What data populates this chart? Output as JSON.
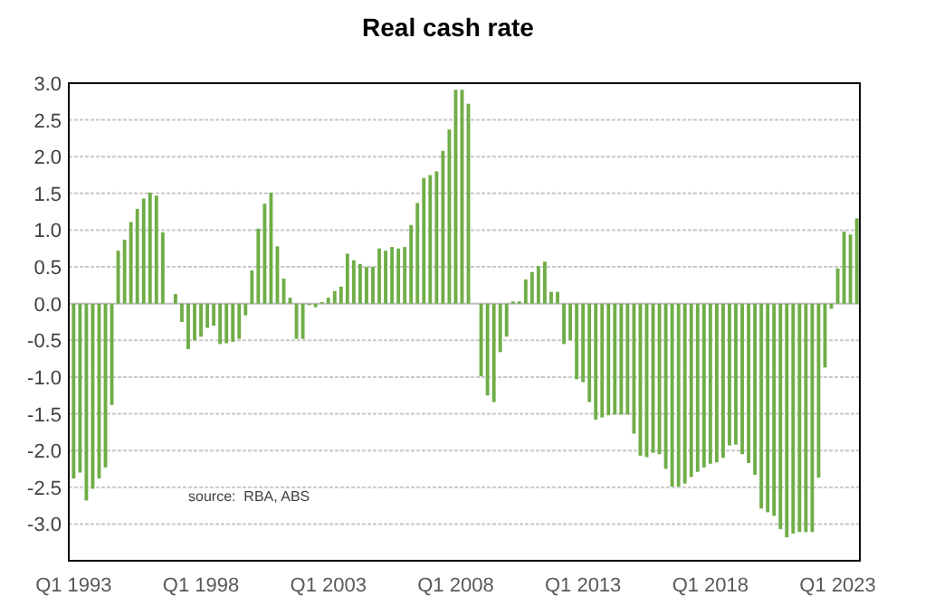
{
  "chart_data": {
    "type": "bar",
    "title": "Real cash rate",
    "categories": [
      "Q1 1993",
      null,
      null,
      null,
      null,
      null,
      null,
      null,
      null,
      null,
      null,
      null,
      null,
      null,
      null,
      null,
      null,
      null,
      null,
      null,
      "Q1 1998",
      null,
      null,
      null,
      null,
      null,
      null,
      null,
      null,
      null,
      null,
      null,
      null,
      null,
      null,
      null,
      null,
      null,
      null,
      null,
      "Q1 2003",
      null,
      null,
      null,
      null,
      null,
      null,
      null,
      null,
      null,
      null,
      null,
      null,
      null,
      null,
      null,
      null,
      null,
      null,
      null,
      "Q1 2008",
      null,
      null,
      null,
      null,
      null,
      null,
      null,
      null,
      null,
      null,
      null,
      null,
      null,
      null,
      null,
      null,
      null,
      null,
      null,
      "Q1 2013",
      null,
      null,
      null,
      null,
      null,
      null,
      null,
      null,
      null,
      null,
      null,
      null,
      null,
      null,
      null,
      null,
      null,
      null,
      null,
      "Q1 2018",
      null,
      null,
      null,
      null,
      null,
      null,
      null,
      null,
      null,
      null,
      null,
      null,
      null,
      null,
      null,
      null,
      null,
      null,
      null,
      "Q1 2023",
      null,
      null,
      null
    ],
    "values": [
      -2.38,
      -2.3,
      -2.68,
      -2.52,
      -2.38,
      -2.23,
      -1.38,
      0.72,
      0.87,
      1.11,
      1.29,
      1.43,
      1.51,
      1.47,
      0.97,
      0,
      0.13,
      -0.25,
      -0.62,
      -0.5,
      -0.45,
      -0.33,
      -0.3,
      -0.55,
      -0.54,
      -0.52,
      -0.48,
      -0.16,
      0.45,
      1.02,
      1.36,
      1.51,
      0.78,
      0.34,
      0.08,
      -0.48,
      -0.48,
      -0.02,
      -0.05,
      0.02,
      0.08,
      0.17,
      0.23,
      0.68,
      0.59,
      0.54,
      0.5,
      0.5,
      0.75,
      0.72,
      0.77,
      0.75,
      0.77,
      1.07,
      1.37,
      1.71,
      1.75,
      1.8,
      2.08,
      2.37,
      2.91,
      2.91,
      2.72,
      0,
      -0.99,
      -1.25,
      -1.34,
      -0.66,
      -0.45,
      0.03,
      0.03,
      0.33,
      0.43,
      0.51,
      0.57,
      0.16,
      0.16,
      -0.55,
      -0.5,
      -1.03,
      -1.07,
      -1.34,
      -1.58,
      -1.55,
      -1.52,
      -1.51,
      -1.51,
      -1.51,
      -1.77,
      -2.07,
      -2.09,
      -2.03,
      -2.05,
      -2.25,
      -2.49,
      -2.49,
      -2.45,
      -2.36,
      -2.29,
      -2.23,
      -2.18,
      -2.16,
      -2.1,
      -1.93,
      -1.92,
      -2.05,
      -2.17,
      -2.33,
      -2.79,
      -2.84,
      -2.89,
      -3.07,
      -3.18,
      -3.13,
      -3.11,
      -3.11,
      -3.11,
      -2.37,
      -0.87,
      -0.07,
      0.48,
      0.98,
      0.94,
      1.16
    ],
    "color": "#70ad47",
    "ylim": [
      -3.5,
      3.0
    ],
    "yticks": [
      {
        "value": -3,
        "label": "-3.0"
      },
      {
        "value": -2.5,
        "label": "-2.5"
      },
      {
        "value": -2,
        "label": "-2.0"
      },
      {
        "value": -1.5,
        "label": "-1.5"
      },
      {
        "value": -1,
        "label": "-1.0"
      },
      {
        "value": -0.5,
        "label": "-0.5"
      },
      {
        "value": 0,
        "label": "0.0"
      },
      {
        "value": 0.5,
        "label": "0.5"
      },
      {
        "value": 1,
        "label": "1.0"
      },
      {
        "value": 1.5,
        "label": "1.5"
      },
      {
        "value": 2,
        "label": "2.0"
      },
      {
        "value": 2.5,
        "label": "2.5"
      },
      {
        "value": 3,
        "label": "3.0"
      }
    ],
    "grid": "y",
    "annotations": [
      "source:  RBA, ABS"
    ]
  }
}
